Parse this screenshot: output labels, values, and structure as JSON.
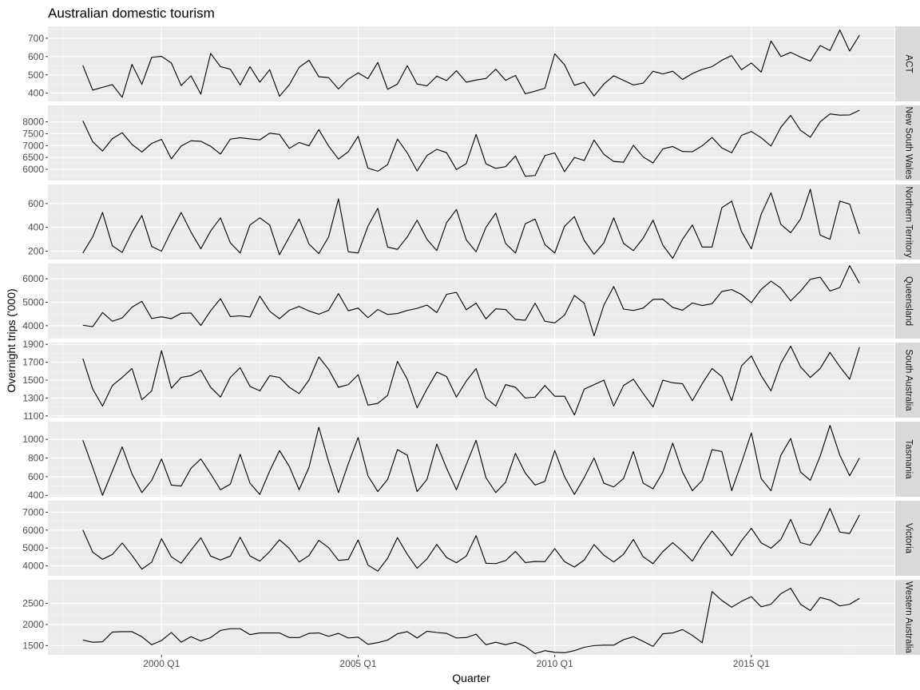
{
  "chart_data": {
    "type": "line",
    "title": "Australian domestic tourism",
    "xlabel": "Quarter",
    "ylabel": "Overnight trips ('000)",
    "x_start": "1998 Q1",
    "x_end": "2017 Q4",
    "x_ticks": [
      "2000 Q1",
      "2005 Q1",
      "2010 Q1",
      "2015 Q1"
    ],
    "grid": true,
    "facets": [
      {
        "name": "ACT",
        "yticks": [
          400,
          500,
          600,
          700
        ],
        "ylim": [
          355,
          765
        ],
        "values": [
          551,
          417,
          432,
          447,
          378,
          557,
          448,
          596,
          601,
          565,
          442,
          495,
          395,
          617,
          545,
          531,
          445,
          545,
          460,
          528,
          383,
          446,
          541,
          580,
          490,
          485,
          423,
          477,
          511,
          479,
          568,
          421,
          450,
          550,
          450,
          440,
          493,
          469,
          523,
          460,
          472,
          480,
          531,
          470,
          497,
          397,
          411,
          427,
          615,
          555,
          443,
          460,
          385,
          450,
          495,
          470,
          445,
          455,
          520,
          505,
          520,
          475,
          507,
          530,
          545,
          580,
          605,
          528,
          565,
          515,
          685,
          600,
          623,
          597,
          575,
          660,
          633,
          745,
          630,
          717
        ]
      },
      {
        "name": "New South Wales",
        "yticks": [
          6000,
          6500,
          7000,
          7500,
          8000
        ],
        "ylim": [
          5530,
          8690
        ],
        "values": [
          8040,
          7160,
          6770,
          7290,
          7540,
          7050,
          6730,
          7090,
          7260,
          6440,
          6980,
          7200,
          7180,
          6970,
          6640,
          7270,
          7330,
          7280,
          7240,
          7520,
          7470,
          6880,
          7130,
          6990,
          7670,
          6980,
          6430,
          6740,
          7390,
          6050,
          5920,
          6200,
          7270,
          6690,
          5930,
          6580,
          6840,
          6700,
          5990,
          6240,
          7470,
          6230,
          6040,
          6110,
          6560,
          5710,
          5740,
          6580,
          6690,
          5900,
          6500,
          6370,
          7230,
          6630,
          6330,
          6300,
          7010,
          6520,
          6270,
          6860,
          6960,
          6750,
          6740,
          6990,
          7340,
          6900,
          6700,
          7430,
          7590,
          7330,
          6980,
          7770,
          8270,
          7640,
          7350,
          8000,
          8330,
          8280,
          8290,
          8490
        ]
      },
      {
        "name": "Northern Territory",
        "yticks": [
          200,
          400,
          600
        ],
        "ylim": [
          130,
          760
        ],
        "values": [
          185,
          320,
          525,
          245,
          190,
          360,
          500,
          240,
          200,
          370,
          525,
          360,
          220,
          370,
          480,
          270,
          185,
          420,
          480,
          420,
          170,
          320,
          470,
          260,
          180,
          320,
          640,
          195,
          185,
          410,
          560,
          235,
          215,
          320,
          460,
          300,
          205,
          440,
          550,
          295,
          195,
          400,
          520,
          265,
          185,
          430,
          470,
          255,
          185,
          410,
          490,
          290,
          175,
          270,
          480,
          265,
          205,
          310,
          460,
          250,
          140,
          300,
          420,
          235,
          235,
          565,
          620,
          365,
          220,
          510,
          690,
          425,
          355,
          470,
          720,
          335,
          300,
          620,
          595,
          345
        ]
      },
      {
        "name": "Queensland",
        "yticks": [
          4000,
          5000,
          6000
        ],
        "ylim": [
          3450,
          6650
        ],
        "values": [
          4020,
          3960,
          4560,
          4190,
          4330,
          4790,
          5040,
          4310,
          4380,
          4300,
          4530,
          4540,
          4010,
          4640,
          5150,
          4390,
          4420,
          4370,
          5260,
          4620,
          4300,
          4660,
          4820,
          4630,
          4490,
          4660,
          5370,
          4640,
          4750,
          4340,
          4690,
          4480,
          4520,
          4650,
          4740,
          4880,
          4560,
          5340,
          5420,
          4680,
          4960,
          4290,
          4720,
          4690,
          4270,
          4230,
          4960,
          4190,
          4120,
          4450,
          5290,
          4960,
          3570,
          4880,
          5670,
          4710,
          4650,
          4750,
          5120,
          5130,
          4780,
          4660,
          4970,
          4860,
          4940,
          5460,
          5540,
          5330,
          4980,
          5550,
          5900,
          5600,
          5060,
          5470,
          5980,
          6070,
          5480,
          5630,
          6560,
          5810
        ]
      },
      {
        "name": "South Australia",
        "yticks": [
          1100,
          1300,
          1500,
          1700,
          1900
        ],
        "ylim": [
          1080,
          1920
        ],
        "values": [
          1740,
          1400,
          1210,
          1440,
          1530,
          1630,
          1280,
          1380,
          1830,
          1410,
          1530,
          1550,
          1610,
          1420,
          1310,
          1530,
          1640,
          1430,
          1380,
          1550,
          1530,
          1420,
          1350,
          1500,
          1760,
          1620,
          1420,
          1450,
          1560,
          1220,
          1240,
          1330,
          1710,
          1510,
          1190,
          1400,
          1590,
          1540,
          1310,
          1490,
          1630,
          1300,
          1210,
          1450,
          1420,
          1300,
          1310,
          1440,
          1320,
          1320,
          1110,
          1400,
          1450,
          1500,
          1210,
          1440,
          1510,
          1350,
          1200,
          1500,
          1470,
          1460,
          1270,
          1460,
          1630,
          1540,
          1270,
          1660,
          1770,
          1550,
          1380,
          1690,
          1880,
          1650,
          1530,
          1630,
          1810,
          1650,
          1510,
          1870
        ]
      },
      {
        "name": "Tasmania",
        "yticks": [
          400,
          600,
          800,
          1000
        ],
        "ylim": [
          385,
          1190
        ],
        "values": [
          990,
          700,
          400,
          660,
          920,
          630,
          430,
          560,
          790,
          510,
          500,
          690,
          790,
          630,
          460,
          520,
          840,
          530,
          410,
          660,
          880,
          710,
          460,
          700,
          1130,
          760,
          430,
          740,
          1020,
          610,
          440,
          570,
          890,
          830,
          440,
          570,
          950,
          690,
          460,
          730,
          990,
          590,
          430,
          540,
          850,
          640,
          510,
          550,
          880,
          600,
          410,
          590,
          800,
          530,
          490,
          580,
          870,
          530,
          470,
          650,
          960,
          650,
          450,
          560,
          890,
          870,
          450,
          750,
          1070,
          580,
          450,
          830,
          1010,
          650,
          560,
          820,
          1150,
          830,
          610,
          800
        ]
      },
      {
        "name": "Victoria",
        "yticks": [
          4000,
          5000,
          6000,
          7000
        ],
        "ylim": [
          3450,
          7640
        ],
        "values": [
          6010,
          4770,
          4370,
          4640,
          5280,
          4590,
          3820,
          4210,
          5520,
          4510,
          4150,
          4880,
          5570,
          4550,
          4330,
          4550,
          5600,
          4560,
          4270,
          4800,
          5460,
          4980,
          4220,
          4580,
          5430,
          5020,
          4310,
          4360,
          5450,
          4050,
          3710,
          4430,
          5580,
          4650,
          3870,
          4390,
          5200,
          4470,
          4180,
          4550,
          5690,
          4150,
          4130,
          4300,
          4810,
          4190,
          4250,
          4240,
          4970,
          4240,
          3940,
          4330,
          5190,
          4600,
          4220,
          4650,
          5480,
          4510,
          4130,
          4800,
          5300,
          4820,
          4270,
          5180,
          5950,
          5300,
          4570,
          5410,
          6100,
          5290,
          4990,
          5480,
          6600,
          5300,
          5160,
          5990,
          7210,
          5890,
          5810,
          6850
        ]
      },
      {
        "name": "Western Australia",
        "yticks": [
          1500,
          2000,
          2500
        ],
        "ylim": [
          1280,
          3060
        ],
        "values": [
          1630,
          1580,
          1590,
          1820,
          1830,
          1830,
          1710,
          1520,
          1620,
          1810,
          1580,
          1710,
          1610,
          1690,
          1860,
          1900,
          1900,
          1760,
          1800,
          1800,
          1800,
          1690,
          1690,
          1790,
          1800,
          1720,
          1790,
          1680,
          1700,
          1530,
          1570,
          1630,
          1780,
          1830,
          1680,
          1840,
          1810,
          1790,
          1680,
          1690,
          1770,
          1520,
          1580,
          1520,
          1580,
          1480,
          1310,
          1380,
          1340,
          1330,
          1380,
          1460,
          1500,
          1510,
          1510,
          1640,
          1710,
          1600,
          1480,
          1780,
          1800,
          1880,
          1740,
          1570,
          2780,
          2570,
          2410,
          2550,
          2660,
          2420,
          2480,
          2730,
          2860,
          2480,
          2330,
          2640,
          2580,
          2440,
          2480,
          2620
        ]
      }
    ]
  }
}
